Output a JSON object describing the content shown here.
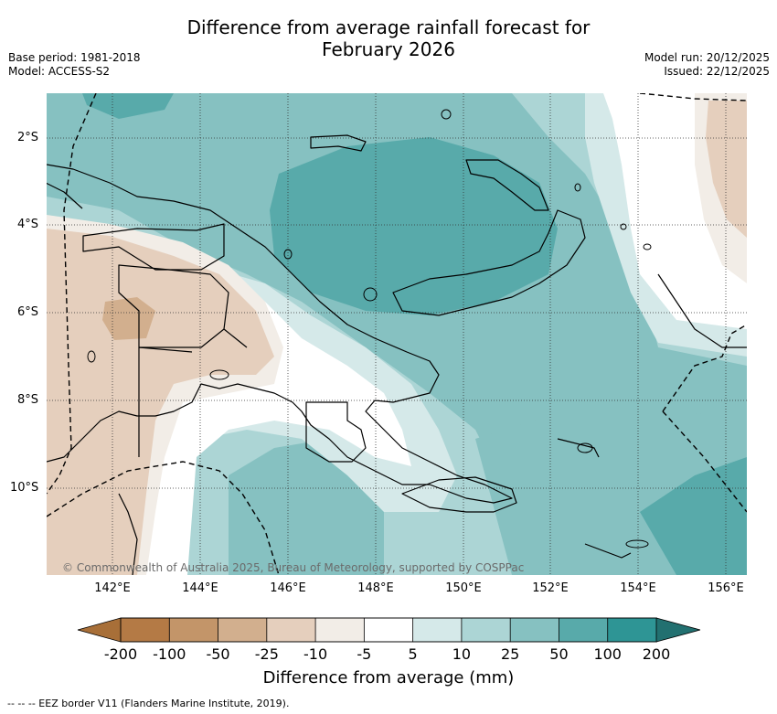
{
  "title": {
    "line1": "Difference from average rainfall forecast for",
    "line2": "February 2026"
  },
  "meta": {
    "base_period": "Base period: 1981-2018",
    "model": "Model: ACCESS-S2",
    "model_run": "Model run: 20/12/2025",
    "issued": "Issued: 22/12/2025"
  },
  "map": {
    "lat_labels": [
      "2°S",
      "4°S",
      "6°S",
      "8°S",
      "10°S"
    ],
    "lon_labels": [
      "142°E",
      "144°E",
      "146°E",
      "148°E",
      "150°E",
      "152°E",
      "154°E",
      "156°E"
    ],
    "credit": "© Commonwealth of Australia 2025, Bureau of Meteorology, supported by COSPPac"
  },
  "colorbar": {
    "title": "Difference from average (mm)",
    "ticks": [
      "-200",
      "-100",
      "-50",
      "-25",
      "-10",
      "-5",
      "5",
      "10",
      "25",
      "50",
      "100",
      "200"
    ],
    "colors": [
      "#a86f38",
      "#b47a45",
      "#c39569",
      "#d2af8e",
      "#e5cfbd",
      "#f2ede7",
      "#ffffff",
      "#d5e9e9",
      "#acd5d5",
      "#86c1c1",
      "#58aaaa",
      "#2e9595",
      "#227070"
    ]
  },
  "footer": "--  --  -- EEZ border V11 (Flanders Marine Institute, 2019)."
}
